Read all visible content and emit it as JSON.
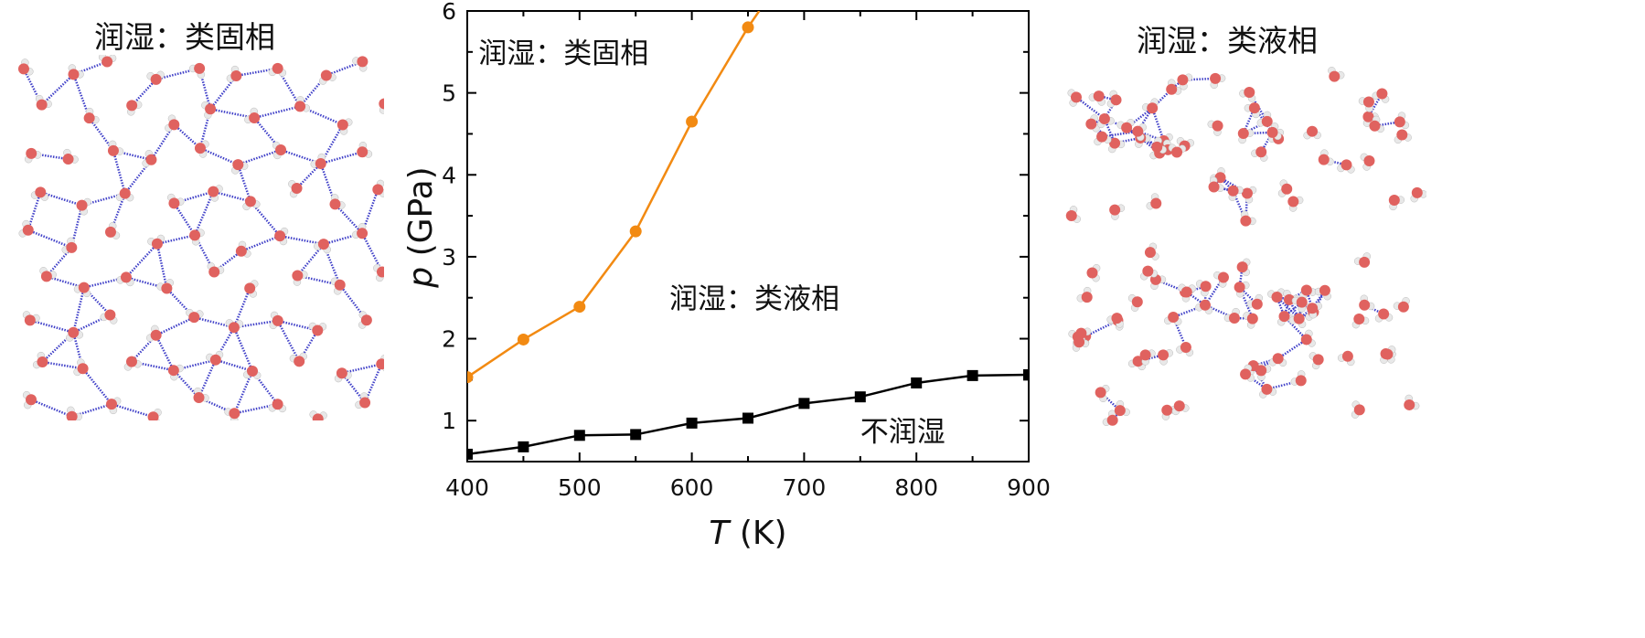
{
  "left_panel": {
    "title": "润湿：类固相"
  },
  "right_panel": {
    "title": "润湿：类液相"
  },
  "colors": {
    "solid_like_boundary": "#f28a12",
    "nonwetting_boundary": "#000000",
    "oxygen": "#e0625f",
    "hydrogen": "#e8e8e8",
    "hbond": "#4040c8"
  },
  "chart_data": {
    "type": "line",
    "xlabel": "T (K)",
    "xlabel_var": "T",
    "xlabel_unit": "(K)",
    "ylabel": "p (GPa)",
    "ylabel_var": "p",
    "ylabel_unit": "(GPa)",
    "xlim": [
      400,
      900
    ],
    "ylim": [
      0.5,
      6
    ],
    "xticks": [
      400,
      500,
      600,
      700,
      800,
      900
    ],
    "yticks": [
      1,
      2,
      3,
      4,
      5,
      6
    ],
    "grid": false,
    "series": [
      {
        "marker": "circle",
        "color": "#f28a12",
        "x": [
          400,
          450,
          500,
          550,
          600,
          650,
          660
        ],
        "y": [
          1.53,
          1.99,
          2.39,
          3.31,
          4.65,
          5.8,
          6.0
        ],
        "marked": [
          true,
          true,
          true,
          true,
          true,
          true,
          false
        ]
      },
      {
        "marker": "square",
        "color": "#000000",
        "x": [
          400,
          450,
          500,
          550,
          600,
          650,
          700,
          750,
          800,
          850,
          900
        ],
        "y": [
          0.59,
          0.68,
          0.82,
          0.83,
          0.97,
          1.03,
          1.21,
          1.29,
          1.46,
          1.55,
          1.56
        ]
      }
    ],
    "annotations": [
      {
        "text": "润湿：类固相",
        "x": 410,
        "y": 5.5
      },
      {
        "text": "润湿：类液相",
        "x": 580,
        "y": 2.5
      },
      {
        "text": "不润湿",
        "x": 750,
        "y": 0.88
      }
    ]
  }
}
